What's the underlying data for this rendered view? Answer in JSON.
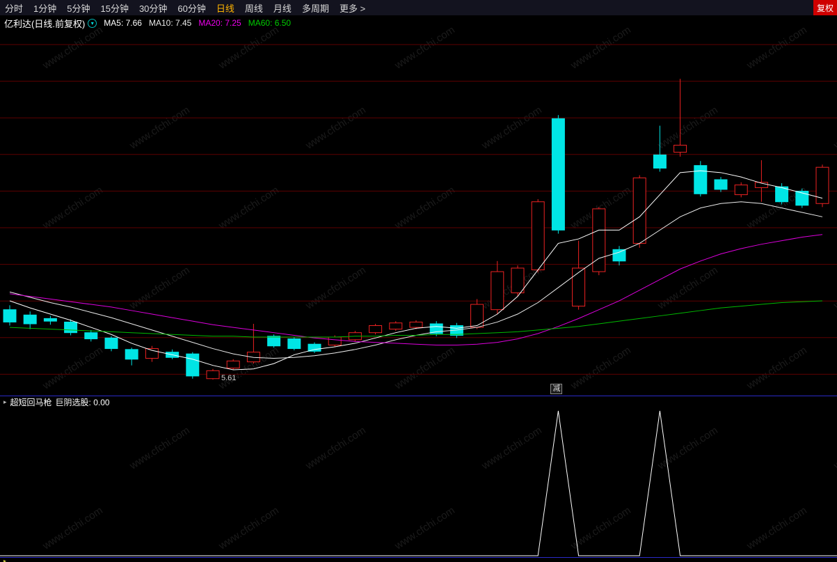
{
  "top_nav": {
    "items": [
      {
        "label": "分时",
        "active": false
      },
      {
        "label": "1分钟",
        "active": false
      },
      {
        "label": "5分钟",
        "active": false
      },
      {
        "label": "15分钟",
        "active": false
      },
      {
        "label": "30分钟",
        "active": false
      },
      {
        "label": "60分钟",
        "active": false
      },
      {
        "label": "日线",
        "active": true
      },
      {
        "label": "周线",
        "active": false
      },
      {
        "label": "月线",
        "active": false
      },
      {
        "label": "多周期",
        "active": false
      },
      {
        "label": "更多 >",
        "active": false
      }
    ],
    "right_button": "复权"
  },
  "title_bar": {
    "symbol": "亿利达(日线.前复权)",
    "ma_labels": [
      {
        "name": "MA5",
        "label": "MA5: 7.66",
        "color": "#ffffff"
      },
      {
        "name": "MA10",
        "label": "MA10: 7.45",
        "color": "#e8e8e8"
      },
      {
        "name": "MA20",
        "label": "MA20: 7.25",
        "color": "#ee00ee"
      },
      {
        "name": "MA60",
        "label": "MA60: 6.50",
        "color": "#00cc00"
      }
    ]
  },
  "icons": {
    "dropdown": "▾",
    "indicator_expand": "▸"
  },
  "watermark": "www.cfchi.com",
  "colors": {
    "active_period": "#ffb400",
    "fuquan_bg": "#cf0000",
    "divider_blue": "#2a2ac8"
  },
  "indicator": {
    "pane_title": "超短回马枪",
    "series_name": "巨阴选股:",
    "series_value": "0.00"
  },
  "chart_data": [
    {
      "type": "candlestick",
      "title": "亿利达(日线.前复权)",
      "ylim": [
        5.45,
        9.6
      ],
      "grid": "horizontal",
      "colors": {
        "up": "#ee2222",
        "down": "#00e5e5",
        "grid": "#5e0000"
      },
      "low_label": {
        "index": 10,
        "text": "5.61"
      },
      "marker": {
        "index": 27,
        "text": "减"
      },
      "candles": [
        {
          "o": 6.4,
          "h": 6.45,
          "l": 6.22,
          "c": 6.26
        },
        {
          "o": 6.34,
          "h": 6.38,
          "l": 6.18,
          "c": 6.24
        },
        {
          "o": 6.3,
          "h": 6.33,
          "l": 6.23,
          "c": 6.27
        },
        {
          "o": 6.26,
          "h": 6.29,
          "l": 6.11,
          "c": 6.14
        },
        {
          "o": 6.14,
          "h": 6.17,
          "l": 6.04,
          "c": 6.07
        },
        {
          "o": 6.08,
          "h": 6.1,
          "l": 5.93,
          "c": 5.96
        },
        {
          "o": 5.95,
          "h": 5.97,
          "l": 5.77,
          "c": 5.84
        },
        {
          "o": 5.85,
          "h": 5.99,
          "l": 5.81,
          "c": 5.96
        },
        {
          "o": 5.92,
          "h": 5.95,
          "l": 5.84,
          "c": 5.86
        },
        {
          "o": 5.9,
          "h": 5.92,
          "l": 5.62,
          "c": 5.65
        },
        {
          "o": 5.62,
          "h": 5.73,
          "l": 5.61,
          "c": 5.71
        },
        {
          "o": 5.74,
          "h": 5.84,
          "l": 5.72,
          "c": 5.82
        },
        {
          "o": 5.81,
          "h": 6.24,
          "l": 5.79,
          "c": 5.92
        },
        {
          "o": 6.1,
          "h": 6.12,
          "l": 5.97,
          "c": 5.99
        },
        {
          "o": 6.07,
          "h": 6.09,
          "l": 5.94,
          "c": 5.96
        },
        {
          "o": 6.01,
          "h": 6.03,
          "l": 5.91,
          "c": 5.93
        },
        {
          "o": 6.0,
          "h": 6.11,
          "l": 5.98,
          "c": 6.09
        },
        {
          "o": 6.06,
          "h": 6.16,
          "l": 6.04,
          "c": 6.14
        },
        {
          "o": 6.14,
          "h": 6.24,
          "l": 6.12,
          "c": 6.22
        },
        {
          "o": 6.18,
          "h": 6.27,
          "l": 6.16,
          "c": 6.25
        },
        {
          "o": 6.2,
          "h": 6.28,
          "l": 6.18,
          "c": 6.26
        },
        {
          "o": 6.24,
          "h": 6.27,
          "l": 6.1,
          "c": 6.13
        },
        {
          "o": 6.22,
          "h": 6.25,
          "l": 6.08,
          "c": 6.11
        },
        {
          "o": 6.2,
          "h": 6.52,
          "l": 6.18,
          "c": 6.46
        },
        {
          "o": 6.4,
          "h": 6.95,
          "l": 6.35,
          "c": 6.83
        },
        {
          "o": 6.59,
          "h": 6.9,
          "l": 6.55,
          "c": 6.87
        },
        {
          "o": 6.85,
          "h": 7.65,
          "l": 6.82,
          "c": 7.62
        },
        {
          "o": 8.56,
          "h": 8.6,
          "l": 7.26,
          "c": 7.3
        },
        {
          "o": 6.44,
          "h": 7.18,
          "l": 6.4,
          "c": 6.87
        },
        {
          "o": 6.83,
          "h": 7.56,
          "l": 6.79,
          "c": 7.54
        },
        {
          "o": 7.08,
          "h": 7.12,
          "l": 6.9,
          "c": 6.95
        },
        {
          "o": 7.15,
          "h": 7.92,
          "l": 7.1,
          "c": 7.89
        },
        {
          "o": 8.15,
          "h": 8.48,
          "l": 7.96,
          "c": 8.0
        },
        {
          "o": 8.18,
          "h": 9.01,
          "l": 8.13,
          "c": 8.26
        },
        {
          "o": 8.03,
          "h": 8.08,
          "l": 7.68,
          "c": 7.71
        },
        {
          "o": 7.87,
          "h": 7.9,
          "l": 7.73,
          "c": 7.76
        },
        {
          "o": 7.7,
          "h": 7.84,
          "l": 7.67,
          "c": 7.81
        },
        {
          "o": 7.78,
          "h": 8.09,
          "l": 7.62,
          "c": 7.84
        },
        {
          "o": 7.79,
          "h": 7.83,
          "l": 7.59,
          "c": 7.62
        },
        {
          "o": 7.74,
          "h": 7.77,
          "l": 7.55,
          "c": 7.58
        },
        {
          "o": 7.6,
          "h": 8.04,
          "l": 7.56,
          "c": 8.01
        }
      ],
      "ma_series": [
        {
          "name": "MA5",
          "color": "#ffffff",
          "values": [
            6.5,
            6.42,
            6.35,
            6.28,
            6.2,
            6.12,
            6.02,
            5.94,
            5.89,
            5.84,
            5.77,
            5.72,
            5.73,
            5.79,
            5.89,
            5.95,
            5.98,
            6.02,
            6.08,
            6.14,
            6.19,
            6.21,
            6.19,
            6.22,
            6.35,
            6.55,
            6.85,
            7.15,
            7.2,
            7.3,
            7.3,
            7.45,
            7.7,
            7.95,
            7.97,
            7.95,
            7.9,
            7.83,
            7.78,
            7.72,
            7.66
          ]
        },
        {
          "name": "MA10",
          "color": "#ececec",
          "values": [
            6.6,
            6.54,
            6.48,
            6.43,
            6.37,
            6.31,
            6.24,
            6.17,
            6.1,
            6.03,
            5.96,
            5.9,
            5.86,
            5.85,
            5.86,
            5.88,
            5.91,
            5.95,
            6.0,
            6.06,
            6.11,
            6.15,
            6.17,
            6.2,
            6.26,
            6.35,
            6.48,
            6.65,
            6.82,
            6.98,
            7.05,
            7.15,
            7.3,
            7.45,
            7.55,
            7.6,
            7.62,
            7.6,
            7.55,
            7.5,
            7.45
          ]
        },
        {
          "name": "MA20",
          "color": "#dd00dd",
          "values": [
            6.58,
            6.55,
            6.52,
            6.49,
            6.46,
            6.43,
            6.39,
            6.35,
            6.31,
            6.27,
            6.23,
            6.2,
            6.17,
            6.14,
            6.11,
            6.08,
            6.06,
            6.04,
            6.03,
            6.02,
            6.01,
            6.0,
            6.0,
            6.01,
            6.03,
            6.07,
            6.13,
            6.21,
            6.3,
            6.4,
            6.5,
            6.62,
            6.74,
            6.86,
            6.95,
            7.03,
            7.09,
            7.14,
            7.18,
            7.22,
            7.25
          ]
        },
        {
          "name": "MA60",
          "color": "#00bb00",
          "values": [
            6.2,
            6.19,
            6.18,
            6.17,
            6.16,
            6.15,
            6.14,
            6.13,
            6.12,
            6.11,
            6.1,
            6.1,
            6.09,
            6.09,
            6.09,
            6.09,
            6.09,
            6.1,
            6.1,
            6.11,
            6.11,
            6.12,
            6.12,
            6.13,
            6.14,
            6.15,
            6.17,
            6.19,
            6.21,
            6.24,
            6.27,
            6.3,
            6.33,
            6.36,
            6.39,
            6.42,
            6.44,
            6.46,
            6.48,
            6.49,
            6.5
          ]
        }
      ]
    },
    {
      "type": "line",
      "title": "超短回马枪",
      "series_name": "巨阴选股",
      "current_value": "0.00",
      "line_color": "#ffffff",
      "ylim": [
        0,
        1
      ],
      "signal_indices": [
        27,
        32
      ],
      "values": [
        0,
        0,
        0,
        0,
        0,
        0,
        0,
        0,
        0,
        0,
        0,
        0,
        0,
        0,
        0,
        0,
        0,
        0,
        0,
        0,
        0,
        0,
        0,
        0,
        0,
        0,
        0,
        1,
        0,
        0,
        0,
        0,
        1,
        0,
        0,
        0,
        0,
        0,
        0,
        0,
        0
      ]
    }
  ]
}
